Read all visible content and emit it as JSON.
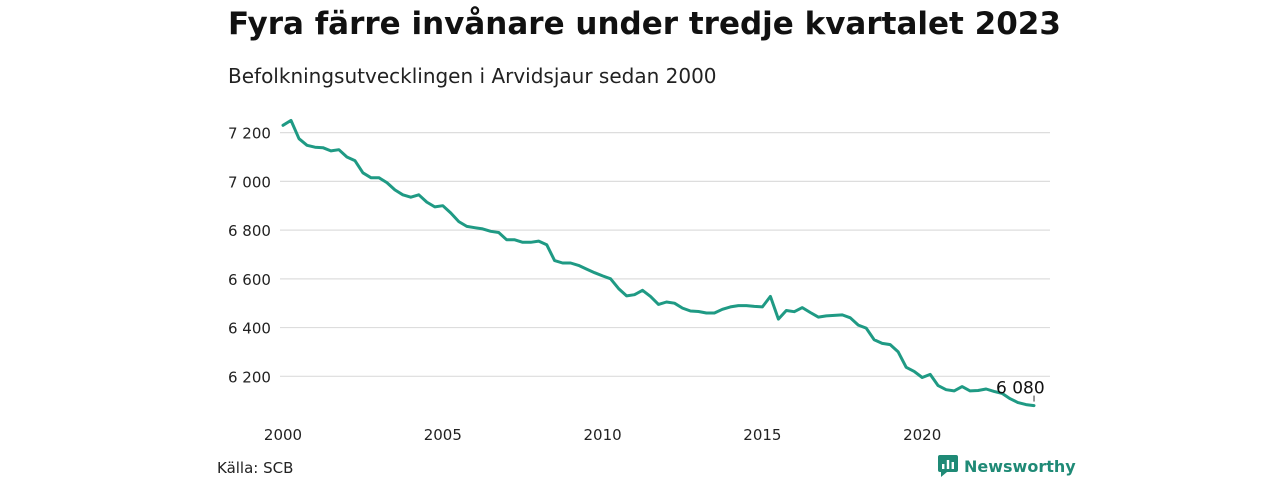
{
  "header": {
    "title": "Fyra färre invånare under tredje kvartalet 2023",
    "subtitle": "Befolkningsutvecklingen i Arvidsjaur sedan 2000"
  },
  "footer": {
    "source": "Källa: SCB",
    "brand": "Newsworthy",
    "brand_icon": "bar-chart-logo-icon"
  },
  "colors": {
    "line": "#1f9a84",
    "brand": "#1f8a76",
    "grid": "#dddddd"
  },
  "chart_data": {
    "type": "line",
    "title": "Fyra färre invånare under tredje kvartalet 2023",
    "subtitle": "Befolkningsutvecklingen i Arvidsjaur sedan 2000",
    "xlabel": "",
    "ylabel": "",
    "xlim": [
      2000.0,
      2024.0
    ],
    "ylim": [
      6070,
      7260
    ],
    "y_ticks": [
      6200,
      6400,
      6600,
      6800,
      7000,
      7200
    ],
    "y_tick_labels": [
      "6 200",
      "6 400",
      "6 600",
      "6 800",
      "7 000",
      "7 200"
    ],
    "x_ticks": [
      2000,
      2005,
      2010,
      2015,
      2020
    ],
    "x_tick_labels": [
      "2000",
      "2005",
      "2010",
      "2015",
      "2020"
    ],
    "grid": "horizontal",
    "end_label": "6 080",
    "series": [
      {
        "x": [
          2000.0,
          2000.25,
          2000.5,
          2000.75,
          2001.0,
          2001.25,
          2001.5,
          2001.75,
          2002.0,
          2002.25,
          2002.5,
          2002.75,
          2003.0,
          2003.25,
          2003.5,
          2003.75,
          2004.0,
          2004.25,
          2004.5,
          2004.75,
          2005.0,
          2005.25,
          2005.5,
          2005.75,
          2006.0,
          2006.25,
          2006.5,
          2006.75,
          2007.0,
          2007.25,
          2007.5,
          2007.75,
          2008.0,
          2008.25,
          2008.5,
          2008.75,
          2009.0,
          2009.25,
          2009.5,
          2009.75,
          2010.0,
          2010.25,
          2010.5,
          2010.75,
          2011.0,
          2011.25,
          2011.5,
          2011.75,
          2012.0,
          2012.25,
          2012.5,
          2012.75,
          2013.0,
          2013.25,
          2013.5,
          2013.75,
          2014.0,
          2014.25,
          2014.5,
          2014.75,
          2015.0,
          2015.25,
          2015.5,
          2015.75,
          2016.0,
          2016.25,
          2016.5,
          2016.75,
          2017.0,
          2017.25,
          2017.5,
          2017.75,
          2018.0,
          2018.25,
          2018.5,
          2018.75,
          2019.0,
          2019.25,
          2019.5,
          2019.75,
          2020.0,
          2020.25,
          2020.5,
          2020.75,
          2021.0,
          2021.25,
          2021.5,
          2021.75,
          2022.0,
          2022.25,
          2022.5,
          2022.75,
          2023.0,
          2023.25,
          2023.5
        ],
        "y": [
          7230,
          7250,
          7175,
          7148,
          7140,
          7138,
          7125,
          7130,
          7100,
          7085,
          7035,
          7015,
          7015,
          6995,
          6965,
          6945,
          6935,
          6945,
          6915,
          6895,
          6900,
          6870,
          6835,
          6815,
          6810,
          6805,
          6795,
          6790,
          6760,
          6760,
          6750,
          6750,
          6755,
          6740,
          6675,
          6665,
          6665,
          6655,
          6640,
          6625,
          6612,
          6600,
          6560,
          6530,
          6535,
          6553,
          6528,
          6495,
          6505,
          6500,
          6480,
          6468,
          6466,
          6460,
          6460,
          6475,
          6485,
          6490,
          6490,
          6487,
          6485,
          6528,
          6435,
          6470,
          6465,
          6482,
          6462,
          6443,
          6448,
          6450,
          6452,
          6440,
          6410,
          6398,
          6350,
          6335,
          6330,
          6300,
          6237,
          6220,
          6195,
          6208,
          6162,
          6145,
          6140,
          6158,
          6140,
          6142,
          6148,
          6138,
          6130,
          6108,
          6092,
          6084,
          6080
        ]
      }
    ]
  }
}
